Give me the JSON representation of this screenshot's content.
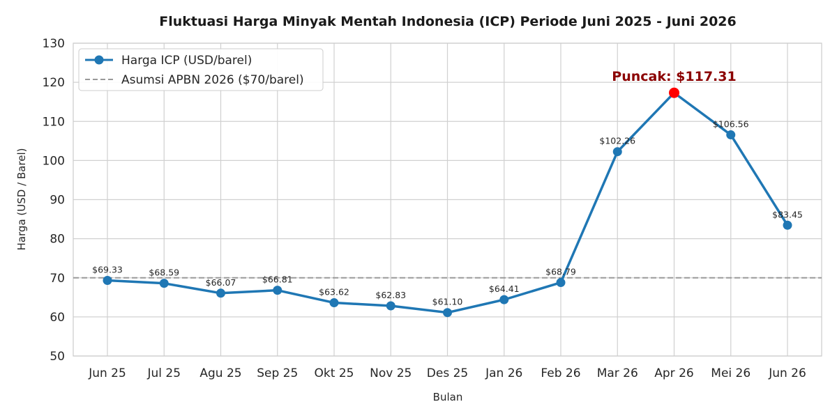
{
  "chart_data": {
    "type": "line",
    "title": "Fluktuasi Harga Minyak Mentah Indonesia (ICP) Periode Juni 2025 - Juni 2026",
    "xlabel": "Bulan",
    "ylabel": "Harga (USD / Barel)",
    "ylim": [
      50,
      130
    ],
    "yticks": [
      50,
      60,
      70,
      80,
      90,
      100,
      110,
      120,
      130
    ],
    "grid": true,
    "legend_position": "top-left",
    "categories": [
      "Jun 25",
      "Jul 25",
      "Agu 25",
      "Sep 25",
      "Okt 25",
      "Nov 25",
      "Des 25",
      "Jan 26",
      "Feb 26",
      "Mar 26",
      "Apr 26",
      "Mei 26",
      "Jun 26"
    ],
    "series": [
      {
        "name": "Harga ICP (USD/barel)",
        "color": "#1f77b4",
        "values": [
          69.33,
          68.59,
          66.07,
          66.81,
          63.62,
          62.83,
          61.1,
          64.41,
          68.79,
          102.26,
          117.31,
          106.56,
          83.45
        ],
        "labels": [
          "$69.33",
          "$68.59",
          "$66.07",
          "$66.81",
          "$63.62",
          "$62.83",
          "$61.10",
          "$64.41",
          "$68.79",
          "$102.26",
          "",
          "$106.56",
          "$83.45"
        ]
      }
    ],
    "reference_line": {
      "name": "Asumsi APBN 2026 ($70/barel)",
      "value": 70,
      "color": "#999999"
    },
    "annotation": {
      "text": "Puncak: $117.31",
      "category": "Apr 26",
      "value": 117.31,
      "color": "#8b0000",
      "marker_color": "#ff0000"
    }
  }
}
